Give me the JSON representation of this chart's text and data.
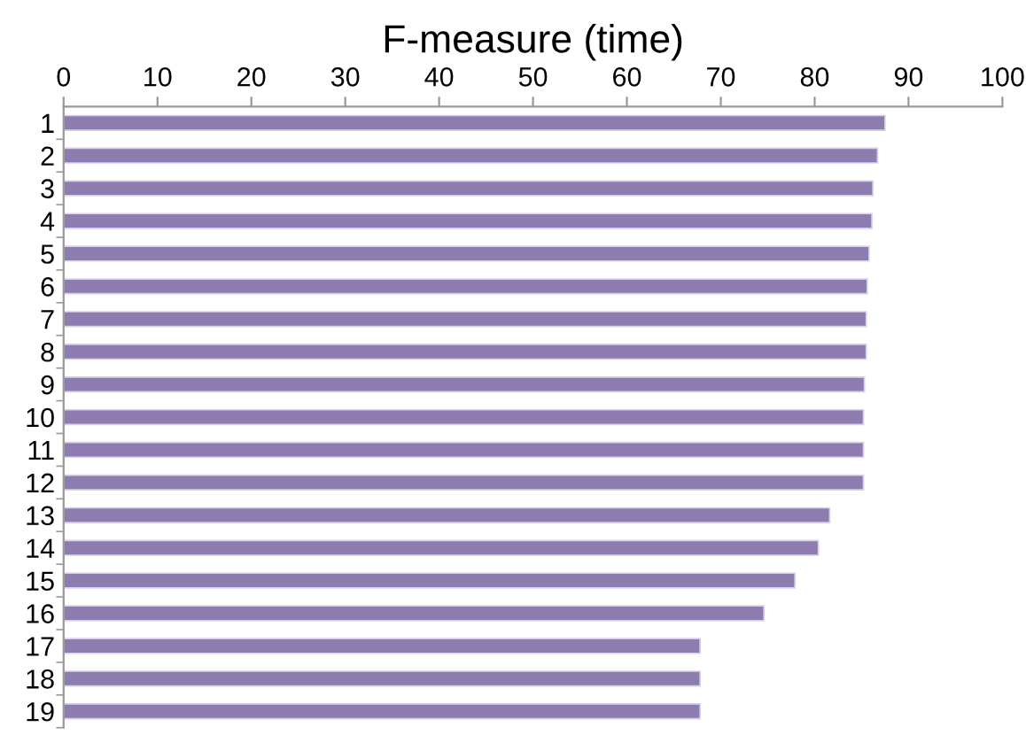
{
  "chart_data": {
    "type": "bar",
    "orientation": "horizontal",
    "title": "F-measure (time)",
    "categories": [
      "1",
      "2",
      "3",
      "4",
      "5",
      "6",
      "7",
      "8",
      "9",
      "10",
      "11",
      "12",
      "13",
      "14",
      "15",
      "16",
      "17",
      "18",
      "19"
    ],
    "values": [
      87.5,
      86.7,
      86.2,
      86.1,
      85.8,
      85.6,
      85.5,
      85.5,
      85.3,
      85.2,
      85.2,
      85.2,
      81.6,
      80.4,
      77.9,
      74.6,
      67.8,
      67.8,
      67.8
    ],
    "color": "#8e7cb0",
    "xlim": [
      0,
      100
    ],
    "xticks": [
      0,
      10,
      20,
      30,
      40,
      50,
      60,
      70,
      80,
      90,
      100
    ],
    "grid": false,
    "legend": false
  }
}
